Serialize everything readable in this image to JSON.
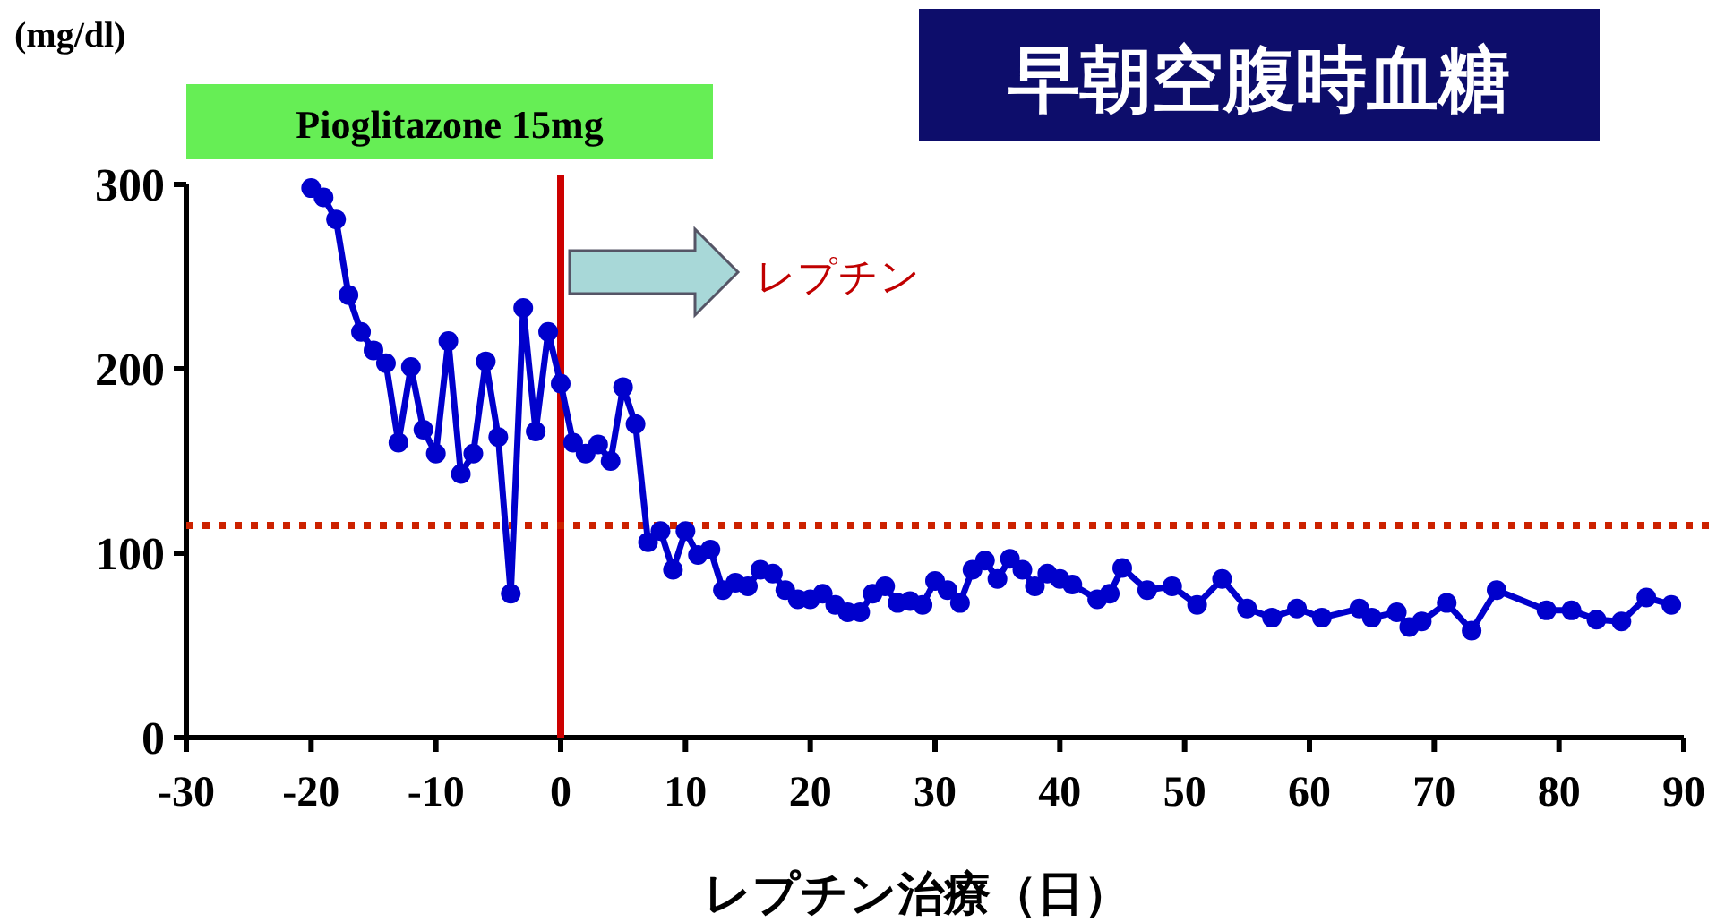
{
  "chart_data": {
    "type": "line",
    "title": "早朝空腹時血糖",
    "ylabel": "(mg/dl)",
    "xlabel": "レプチン治療（日）",
    "x": [
      -20,
      -19,
      -18,
      -17,
      -16,
      -15,
      -14,
      -13,
      -12,
      -11,
      -10,
      -9,
      -8,
      -7,
      -6,
      -5,
      -4,
      -3,
      -2,
      -1,
      0,
      1,
      2,
      3,
      4,
      5,
      6,
      7,
      8,
      9,
      10,
      11,
      12,
      13,
      14,
      15,
      16,
      17,
      18,
      19,
      20,
      21,
      22,
      23,
      24,
      25,
      26,
      27,
      28,
      29,
      30,
      31,
      32,
      33,
      34,
      35,
      36,
      37,
      38,
      39,
      40,
      41,
      43,
      44,
      45,
      47,
      49,
      51,
      53,
      55,
      57,
      59,
      61,
      64,
      65,
      67,
      68,
      69,
      71,
      73,
      75,
      79,
      81,
      83,
      85,
      87,
      89
    ],
    "series": [
      {
        "color": "#0000cc",
        "values": [
          298,
          293,
          281,
          240,
          220,
          210,
          203,
          160,
          201,
          167,
          154,
          215,
          143,
          154,
          204,
          163,
          78,
          233,
          166,
          220,
          192,
          160,
          154,
          159,
          150,
          190,
          170,
          106,
          112,
          91,
          112,
          99,
          102,
          80,
          84,
          82,
          91,
          89,
          80,
          75,
          75,
          78,
          72,
          68,
          68,
          78,
          82,
          73,
          74,
          72,
          85,
          80,
          73,
          91,
          96,
          86,
          97,
          91,
          82,
          89,
          86,
          83,
          75,
          78,
          92,
          80,
          82,
          72,
          86,
          70,
          65,
          70,
          65,
          70,
          65,
          68,
          60,
          63,
          73,
          58,
          80,
          69,
          69,
          64,
          63,
          76,
          72
        ]
      }
    ],
    "xlim": [
      -30,
      90
    ],
    "ylim": [
      0,
      300
    ],
    "xticks": [
      -30,
      -20,
      -10,
      0,
      10,
      20,
      30,
      40,
      50,
      60,
      70,
      80,
      90
    ],
    "yticks": [
      0,
      100,
      200,
      300
    ],
    "marker": "circle",
    "line_style": "solid",
    "grid": false,
    "ref_lines": [
      {
        "axis": "x",
        "value": 0,
        "color": "#cc0000",
        "line_style": "solid"
      },
      {
        "axis": "y",
        "value": 115,
        "color": "#cc2200",
        "line_style": "dotted"
      }
    ],
    "annotations": [
      "Pioglitazone 15mg",
      "レプチン"
    ]
  }
}
